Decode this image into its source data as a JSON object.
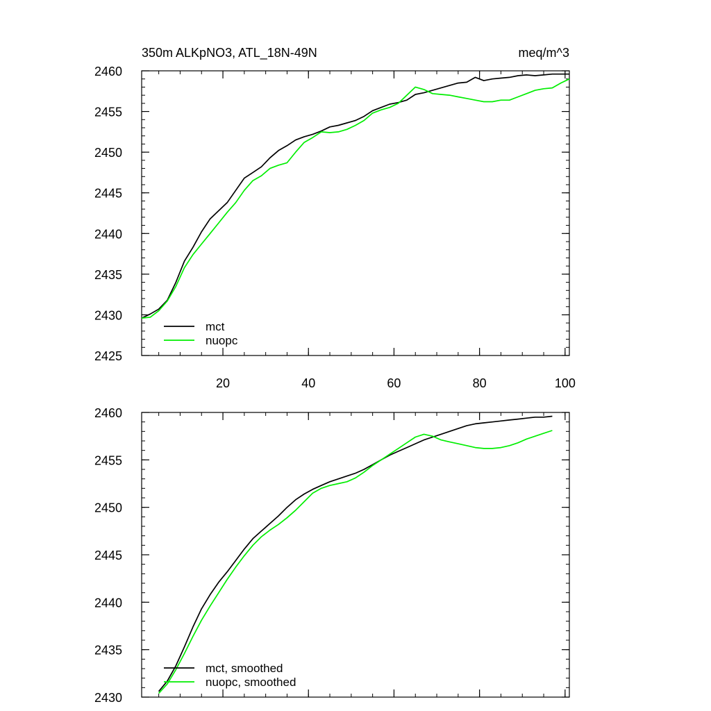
{
  "chart_data": [
    {
      "type": "line",
      "title": "350m ALKpNO3, ATL_18N-49N",
      "units": "meq/m^3",
      "xlim": [
        1,
        101
      ],
      "ylim": [
        2425,
        2460
      ],
      "xticks": [
        20,
        40,
        60,
        80,
        100
      ],
      "xtick_labels": [
        "20",
        "40",
        "60",
        "80",
        "100"
      ],
      "yticks": [
        2425,
        2430,
        2435,
        2440,
        2445,
        2450,
        2455,
        2460
      ],
      "ytick_labels": [
        "2425",
        "2430",
        "2435",
        "2440",
        "2445",
        "2450",
        "2455",
        "2460"
      ],
      "legend_position": "bottom-left",
      "series": [
        {
          "name": "mct",
          "color": "#000000",
          "x": [
            1,
            3,
            5,
            7,
            9,
            11,
            13,
            15,
            17,
            19,
            21,
            23,
            25,
            27,
            29,
            31,
            33,
            35,
            37,
            39,
            41,
            43,
            45,
            47,
            49,
            51,
            53,
            55,
            57,
            59,
            61,
            63,
            65,
            67,
            69,
            71,
            73,
            75,
            77,
            79,
            81,
            83,
            85,
            87,
            89,
            91,
            93,
            95,
            97,
            99,
            101
          ],
          "y": [
            2429.6,
            2430.1,
            2430.7,
            2431.8,
            2434.0,
            2436.6,
            2438.3,
            2440.2,
            2441.8,
            2442.8,
            2443.8,
            2445.3,
            2446.8,
            2447.5,
            2448.2,
            2449.3,
            2450.2,
            2450.8,
            2451.5,
            2451.9,
            2452.2,
            2452.6,
            2453.1,
            2453.3,
            2453.6,
            2453.9,
            2454.4,
            2455.1,
            2455.5,
            2455.9,
            2456.1,
            2456.4,
            2457.1,
            2457.3,
            2457.6,
            2457.9,
            2458.2,
            2458.5,
            2458.6,
            2459.2,
            2458.8,
            2459.0,
            2459.1,
            2459.2,
            2459.4,
            2459.5,
            2459.4,
            2459.5,
            2459.6,
            2459.6,
            2459.6
          ]
        },
        {
          "name": "nuopc",
          "color": "#00ee00",
          "x": [
            1,
            3,
            5,
            7,
            9,
            11,
            13,
            15,
            17,
            19,
            21,
            23,
            25,
            27,
            29,
            31,
            33,
            35,
            37,
            39,
            41,
            43,
            45,
            47,
            49,
            51,
            53,
            55,
            57,
            59,
            61,
            63,
            65,
            67,
            69,
            71,
            73,
            75,
            77,
            79,
            81,
            83,
            85,
            87,
            89,
            91,
            93,
            95,
            97,
            99,
            101
          ],
          "y": [
            2429.6,
            2429.7,
            2430.5,
            2431.7,
            2433.5,
            2435.8,
            2437.4,
            2438.7,
            2440.0,
            2441.3,
            2442.6,
            2443.8,
            2445.3,
            2446.5,
            2447.1,
            2448.0,
            2448.4,
            2448.7,
            2450.0,
            2451.2,
            2451.8,
            2452.5,
            2452.4,
            2452.5,
            2452.8,
            2453.3,
            2453.9,
            2454.8,
            2455.2,
            2455.5,
            2456.0,
            2457.0,
            2458.0,
            2457.7,
            2457.2,
            2457.1,
            2457.0,
            2456.8,
            2456.6,
            2456.4,
            2456.2,
            2456.2,
            2456.4,
            2456.4,
            2456.8,
            2457.2,
            2457.6,
            2457.8,
            2457.9,
            2458.5,
            2459.0
          ]
        }
      ]
    },
    {
      "type": "line",
      "title": "",
      "xlim": [
        1,
        101
      ],
      "ylim": [
        2430,
        2460
      ],
      "xticks": [
        20,
        40,
        60,
        80,
        100
      ],
      "yticks": [
        2430,
        2435,
        2440,
        2445,
        2450,
        2455,
        2460
      ],
      "ytick_labels": [
        "2430",
        "2435",
        "2440",
        "2445",
        "2450",
        "2455",
        "2460"
      ],
      "legend_position": "bottom-left",
      "series": [
        {
          "name": "mct, smoothed",
          "color": "#000000",
          "x": [
            5,
            7,
            9,
            11,
            13,
            15,
            17,
            19,
            21,
            23,
            25,
            27,
            29,
            31,
            33,
            35,
            37,
            39,
            41,
            43,
            45,
            47,
            49,
            51,
            53,
            55,
            57,
            59,
            61,
            63,
            65,
            67,
            69,
            71,
            73,
            75,
            77,
            79,
            81,
            83,
            85,
            87,
            89,
            91,
            93,
            95,
            97
          ],
          "y": [
            2430.6,
            2431.7,
            2433.3,
            2435.3,
            2437.4,
            2439.3,
            2440.8,
            2442.1,
            2443.2,
            2444.4,
            2445.6,
            2446.7,
            2447.5,
            2448.3,
            2449.1,
            2450.0,
            2450.8,
            2451.4,
            2451.9,
            2452.3,
            2452.7,
            2453.0,
            2453.3,
            2453.6,
            2454.0,
            2454.5,
            2455.0,
            2455.5,
            2455.9,
            2456.3,
            2456.7,
            2457.1,
            2457.4,
            2457.7,
            2458.0,
            2458.3,
            2458.6,
            2458.8,
            2458.9,
            2459.0,
            2459.1,
            2459.2,
            2459.3,
            2459.4,
            2459.5,
            2459.5,
            2459.6
          ]
        },
        {
          "name": "nuopc, smoothed",
          "color": "#00ee00",
          "x": [
            5,
            7,
            9,
            11,
            13,
            15,
            17,
            19,
            21,
            23,
            25,
            27,
            29,
            31,
            33,
            35,
            37,
            39,
            41,
            43,
            45,
            47,
            49,
            51,
            53,
            55,
            57,
            59,
            61,
            63,
            65,
            67,
            69,
            71,
            73,
            75,
            77,
            79,
            81,
            83,
            85,
            87,
            89,
            91,
            93,
            95,
            97
          ],
          "y": [
            2430.4,
            2431.4,
            2432.9,
            2434.6,
            2436.4,
            2438.1,
            2439.6,
            2441.0,
            2442.4,
            2443.7,
            2444.9,
            2446.0,
            2446.9,
            2447.6,
            2448.2,
            2448.9,
            2449.7,
            2450.6,
            2451.5,
            2452.0,
            2452.3,
            2452.5,
            2452.7,
            2453.1,
            2453.7,
            2454.4,
            2455.0,
            2455.6,
            2456.2,
            2456.8,
            2457.4,
            2457.7,
            2457.5,
            2457.1,
            2456.9,
            2456.7,
            2456.5,
            2456.3,
            2456.2,
            2456.2,
            2456.3,
            2456.5,
            2456.8,
            2457.2,
            2457.5,
            2457.8,
            2458.1
          ]
        }
      ]
    }
  ]
}
